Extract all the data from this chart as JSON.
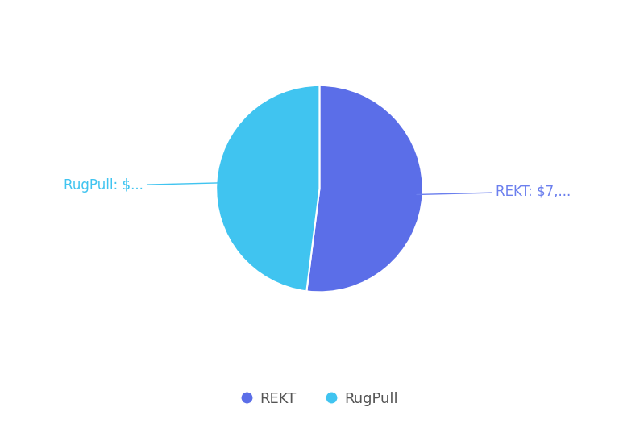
{
  "labels": [
    "REKT",
    "RugPull"
  ],
  "values": [
    52,
    48
  ],
  "colors": [
    "#5B6EE8",
    "#40C4F0"
  ],
  "label_texts": [
    "REKT: $7,...",
    "RugPull: $..."
  ],
  "label_colors": [
    "#6B7FEE",
    "#40C4F0"
  ],
  "legend_labels": [
    "REKT",
    "RugPull"
  ],
  "background_color": "#ffffff",
  "wedge_linewidth": 1.5,
  "wedge_linecolor": "#ffffff",
  "label_fontsize": 12,
  "legend_fontsize": 13,
  "legend_text_color": "#555555"
}
